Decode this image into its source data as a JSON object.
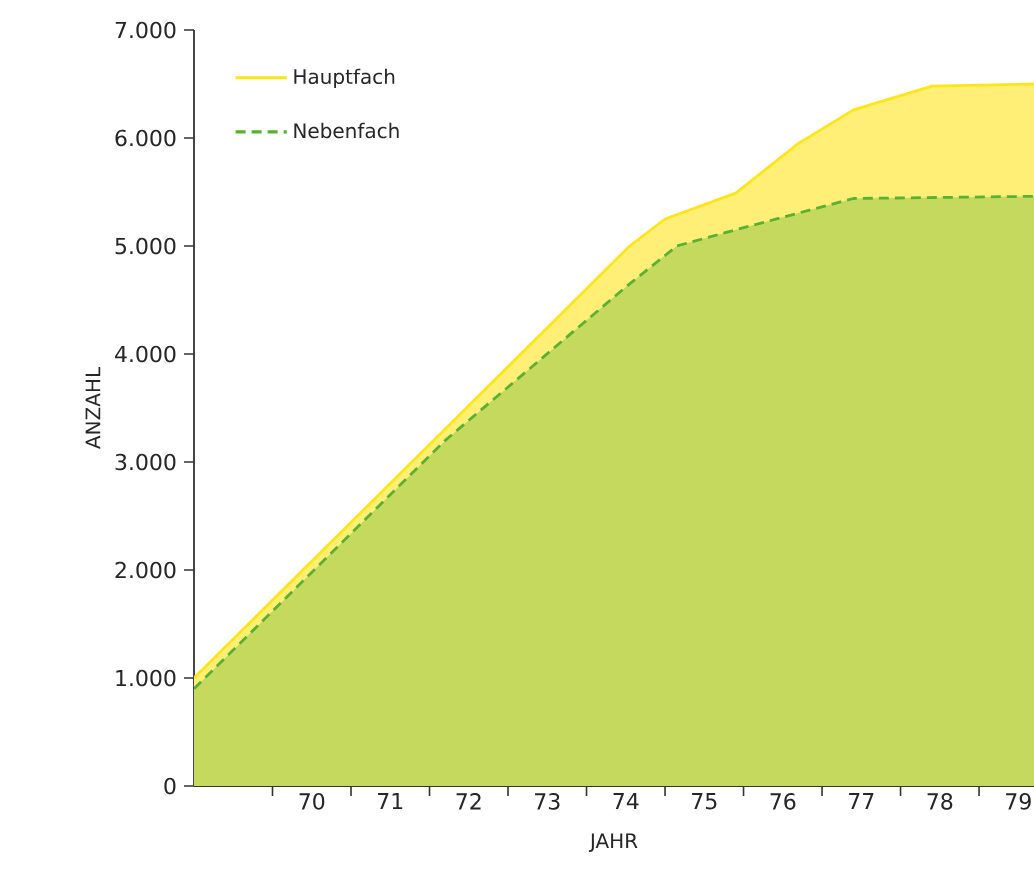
{
  "chart_data": {
    "type": "area",
    "xlabel": "JAHR",
    "ylabel": "ANZAHL",
    "legend": "top left",
    "xlim": [
      68.5,
      79.2
    ],
    "ylim": [
      0,
      7000
    ],
    "xticks": [
      {
        "value": 69.5,
        "label": null
      },
      {
        "value": 70,
        "label": "70"
      },
      {
        "value": 70.5,
        "label": null
      },
      {
        "value": 71,
        "label": "71"
      },
      {
        "value": 71.5,
        "label": null
      },
      {
        "value": 72,
        "label": "72"
      },
      {
        "value": 72.5,
        "label": null
      },
      {
        "value": 73,
        "label": "73"
      },
      {
        "value": 73.5,
        "label": null
      },
      {
        "value": 74,
        "label": "74"
      },
      {
        "value": 74.5,
        "label": null
      },
      {
        "value": 75,
        "label": "75"
      },
      {
        "value": 75.5,
        "label": null
      },
      {
        "value": 76,
        "label": "76"
      },
      {
        "value": 76.5,
        "label": null
      },
      {
        "value": 77,
        "label": "77"
      },
      {
        "value": 77.5,
        "label": null
      },
      {
        "value": 78,
        "label": "78"
      },
      {
        "value": 78.5,
        "label": null
      },
      {
        "value": 79,
        "label": "79"
      }
    ],
    "yticks": [
      0,
      {
        "value": 1000,
        "label": "1.000"
      },
      {
        "value": 2000,
        "label": "2.000"
      },
      {
        "value": 3000,
        "label": "3.000"
      },
      {
        "value": 4000,
        "label": "4.000"
      },
      {
        "value": 5000,
        "label": "5.000"
      },
      {
        "value": 6000,
        "label": "6.000"
      },
      {
        "value": 7000,
        "label": "7.000"
      }
    ],
    "series": [
      {
        "name": "Hauptfach",
        "color": "#ffe51a",
        "line_style": "solid",
        "x": [
          68.5,
          74.05,
          74.5,
          75.4,
          76.2,
          76.9,
          77.9,
          79.2
        ],
        "values": [
          1000,
          5000,
          5250,
          5490,
          5950,
          6260,
          6480,
          6500
        ]
      },
      {
        "name": "Nebenfach",
        "color": "#5ab031",
        "line_style": "dashed",
        "x": [
          68.5,
          71.7,
          74.0,
          74.65,
          75.4,
          76.9,
          79.2
        ],
        "values": [
          900,
          3200,
          4620,
          5000,
          5150,
          5440,
          5460
        ]
      }
    ]
  }
}
